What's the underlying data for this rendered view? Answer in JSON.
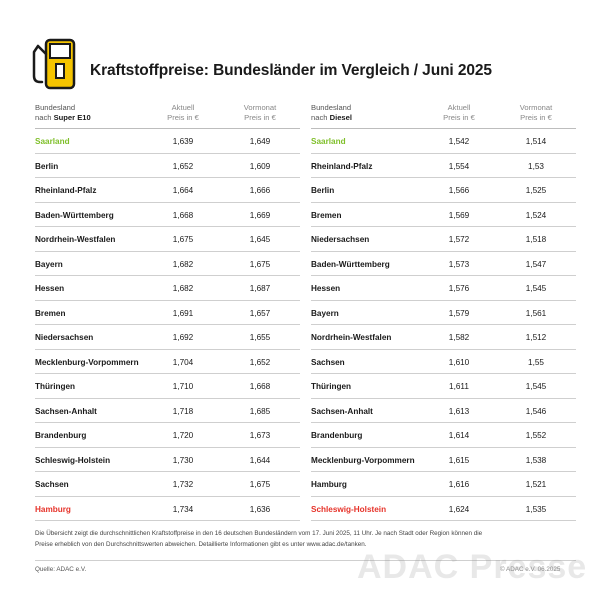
{
  "title": "Kraftstoffpreise: Bundesländer im Vergleich / Juni 2025",
  "colors": {
    "accent_yellow": "#f5c400",
    "cheapest": "#7fbf2a",
    "most_expensive": "#e63229"
  },
  "icon": "fuel-pump-icon",
  "left_table": {
    "header": {
      "col1_line1": "Bundesland",
      "col1_line2_prefix": "nach",
      "col1_line2_bold": "Super E10",
      "col2_line1": "Aktuell",
      "col2_line2": "Preis in €",
      "col3_line1": "Vormonat",
      "col3_line2": "Preis in €"
    }
  },
  "right_table": {
    "header": {
      "col1_line1": "Bundesland",
      "col1_line2_prefix": "nach",
      "col1_line2_bold": "Diesel",
      "col2_line1": "Aktuell",
      "col2_line2": "Preis in €",
      "col3_line1": "Vormonat",
      "col3_line2": "Preis in €"
    }
  },
  "chart_data": [
    {
      "type": "table",
      "columns": [
        "Bundesland nach Super E10",
        "Aktuell Preis in €",
        "Vormonat Preis in €"
      ],
      "rows": [
        [
          "Saarland",
          "1,639",
          "1,649"
        ],
        [
          "Berlin",
          "1,652",
          "1,609"
        ],
        [
          "Rheinland-Pfalz",
          "1,664",
          "1,666"
        ],
        [
          "Baden-Württemberg",
          "1,668",
          "1,669"
        ],
        [
          "Nordrhein-Westfalen",
          "1,675",
          "1,645"
        ],
        [
          "Bayern",
          "1,682",
          "1,675"
        ],
        [
          "Hessen",
          "1,682",
          "1,687"
        ],
        [
          "Bremen",
          "1,691",
          "1,657"
        ],
        [
          "Niedersachsen",
          "1,692",
          "1,655"
        ],
        [
          "Mecklenburg-Vorpommern",
          "1,704",
          "1,652"
        ],
        [
          "Thüringen",
          "1,710",
          "1,668"
        ],
        [
          "Sachsen-Anhalt",
          "1,718",
          "1,685"
        ],
        [
          "Brandenburg",
          "1,720",
          "1,673"
        ],
        [
          "Schleswig-Holstein",
          "1,730",
          "1,644"
        ],
        [
          "Sachsen",
          "1,732",
          "1,675"
        ],
        [
          "Hamburg",
          "1,734",
          "1,636"
        ]
      ],
      "highlight": {
        "first_row": "green",
        "last_row": "red"
      }
    },
    {
      "type": "table",
      "columns": [
        "Bundesland nach Diesel",
        "Aktuell Preis in €",
        "Vormonat Preis in €"
      ],
      "rows": [
        [
          "Saarland",
          "1,542",
          "1,514"
        ],
        [
          "Rheinland-Pfalz",
          "1,554",
          "1,53"
        ],
        [
          "Berlin",
          "1,566",
          "1,525"
        ],
        [
          "Bremen",
          "1,569",
          "1,524"
        ],
        [
          "Niedersachsen",
          "1,572",
          "1,518"
        ],
        [
          "Baden-Württemberg",
          "1,573",
          "1,547"
        ],
        [
          "Hessen",
          "1,576",
          "1,545"
        ],
        [
          "Bayern",
          "1,579",
          "1,561"
        ],
        [
          "Nordrhein-Westfalen",
          "1,582",
          "1,512"
        ],
        [
          "Sachsen",
          "1,610",
          "1,55"
        ],
        [
          "Thüringen",
          "1,611",
          "1,545"
        ],
        [
          "Sachsen-Anhalt",
          "1,613",
          "1,546"
        ],
        [
          "Brandenburg",
          "1,614",
          "1,552"
        ],
        [
          "Mecklenburg-Vorpommern",
          "1,615",
          "1,538"
        ],
        [
          "Hamburg",
          "1,616",
          "1,521"
        ],
        [
          "Schleswig-Holstein",
          "1,624",
          "1,535"
        ]
      ],
      "highlight": {
        "first_row": "green",
        "last_row": "red"
      }
    }
  ],
  "footnote": {
    "line1": "Die Übersicht zeigt die durchschnittlichen Kraftstoffpreise in den 16 deutschen Bundesländern vom 17. Juni 2025, 11 Uhr. Je nach Stadt oder Region können die",
    "line2": "Preise erheblich von den Durchschnittswerten abweichen. Detaillierte Informationen gibt es unter www.adac.de/tanken."
  },
  "source": "Quelle: ADAC e.V.",
  "copyright": "© ADAC e.V. 06.2025",
  "watermark": "ADAC Presse"
}
